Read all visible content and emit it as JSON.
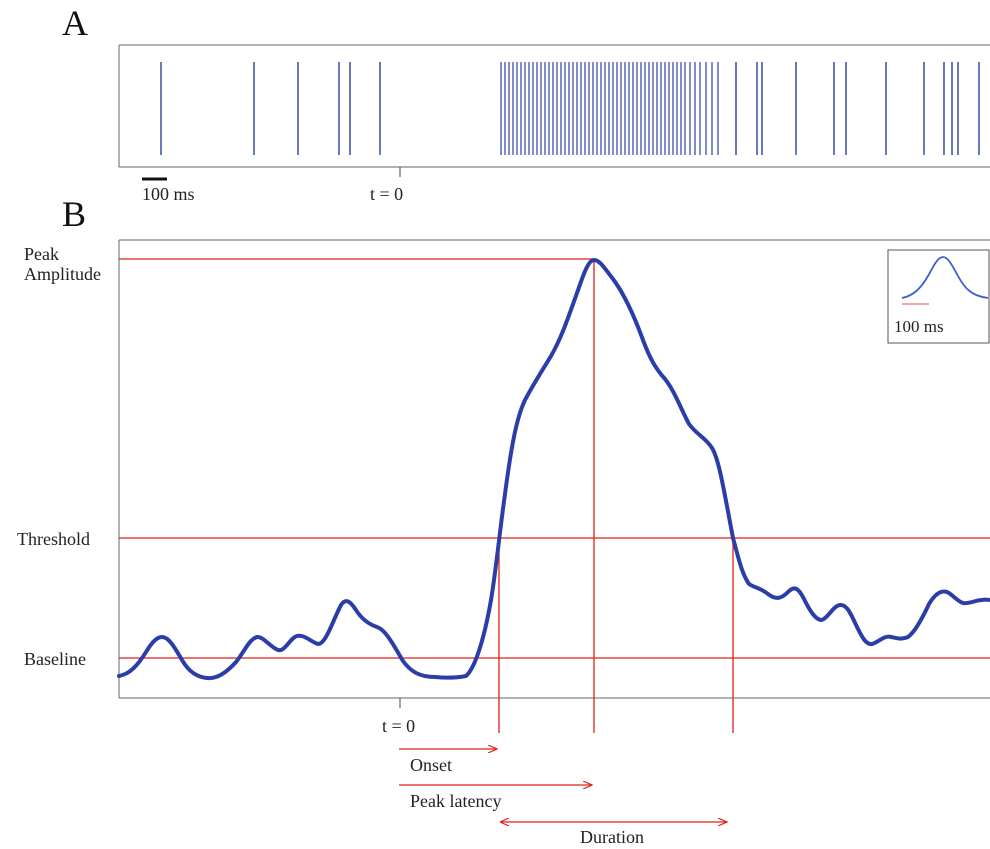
{
  "panel_a": {
    "letter": "A",
    "scale_bar_label": "100 ms",
    "t0_label": "t = 0",
    "spike_color": "#2b3ea8"
  },
  "panel_b": {
    "letter": "B",
    "levels": {
      "peak": "Peak\nAmplitude",
      "threshold": "Threshold",
      "baseline": "Baseline"
    },
    "t0_label": "t = 0",
    "measures": {
      "onset": "Onset",
      "peak_latency": "Peak latency",
      "duration": "Duration"
    },
    "inset_scale_label": "100 ms",
    "curve_color": "#2b3ea8",
    "marker_color": "#e0201b"
  }
}
